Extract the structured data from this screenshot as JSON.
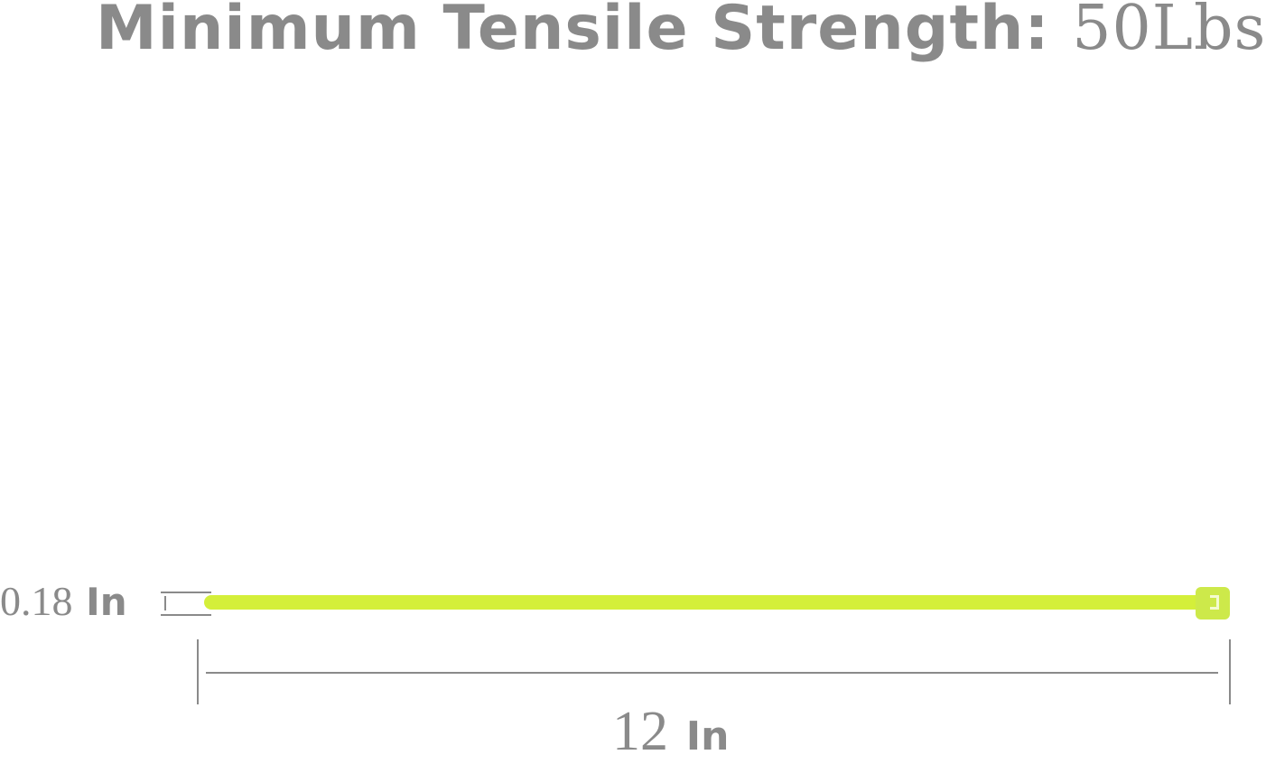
{
  "title": {
    "label": "Minimum Tensile Strength:",
    "value": "50Lbs"
  },
  "width_dimension": {
    "value": "0.18",
    "unit": "In"
  },
  "length_dimension": {
    "value": "12",
    "unit": "In"
  },
  "colors": {
    "tie": "#d4ef3a",
    "text": "#8a8a8a"
  }
}
